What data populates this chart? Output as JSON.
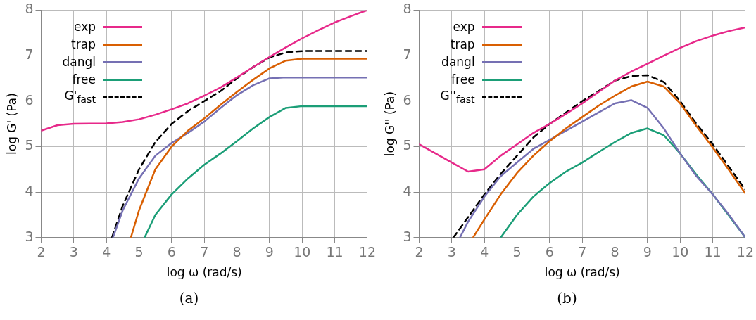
{
  "chart_data": [
    {
      "type": "line",
      "xlabel": "log ω (rad/s)",
      "ylabel": "log G' (Pa)",
      "xlim": [
        2,
        12
      ],
      "ylim": [
        3,
        8
      ],
      "xticks": [
        2,
        3,
        4,
        5,
        6,
        7,
        8,
        9,
        10,
        11,
        12
      ],
      "yticks": [
        3,
        4,
        5,
        6,
        7,
        8
      ],
      "grid": true,
      "legend": "top left",
      "marker": "none",
      "annotations": [
        "(a)"
      ],
      "series": [
        {
          "name": "exp",
          "color": "#e7298a",
          "x": [
            2,
            2.5,
            3,
            4,
            4.5,
            5,
            5.5,
            6,
            6.5,
            7,
            7.5,
            8,
            8.5,
            9,
            9.5,
            10,
            10.5,
            11,
            11.5,
            12
          ],
          "values": [
            5.35,
            5.47,
            5.5,
            5.51,
            5.54,
            5.6,
            5.7,
            5.82,
            5.95,
            6.12,
            6.3,
            6.52,
            6.75,
            6.97,
            7.18,
            7.38,
            7.56,
            7.73,
            7.87,
            8.0
          ]
        },
        {
          "name": "trap",
          "color": "#d95f02",
          "x": [
            4.75,
            5,
            5.5,
            6,
            6.5,
            7,
            7.5,
            8,
            8.5,
            9,
            9.5,
            10,
            12
          ],
          "values": [
            3,
            3.6,
            4.5,
            5.0,
            5.35,
            5.62,
            5.92,
            6.2,
            6.47,
            6.72,
            6.89,
            6.93,
            6.93
          ]
        },
        {
          "name": "dangl",
          "color": "#7570b3",
          "x": [
            4.2,
            4.5,
            5,
            5.5,
            6,
            6.5,
            7,
            7.5,
            8,
            8.5,
            9,
            9.5,
            12
          ],
          "values": [
            3,
            3.6,
            4.3,
            4.8,
            5.08,
            5.3,
            5.55,
            5.85,
            6.13,
            6.35,
            6.5,
            6.52,
            6.52
          ]
        },
        {
          "name": "free",
          "color": "#1b9e77",
          "x": [
            5.17,
            5.5,
            6,
            6.5,
            7,
            7.5,
            8,
            8.5,
            9,
            9.5,
            10,
            12
          ],
          "values": [
            3,
            3.5,
            3.95,
            4.3,
            4.6,
            4.85,
            5.12,
            5.4,
            5.65,
            5.85,
            5.89,
            5.89
          ]
        },
        {
          "name": "G'$_{fast}$",
          "color": "#000000",
          "line_style": "dashed",
          "x": [
            4.17,
            4.5,
            5,
            5.5,
            6,
            6.5,
            7,
            7.5,
            8,
            8.5,
            9,
            9.5,
            10,
            12
          ],
          "values": [
            3,
            3.7,
            4.5,
            5.1,
            5.5,
            5.78,
            6.0,
            6.22,
            6.5,
            6.75,
            6.96,
            7.07,
            7.1,
            7.1
          ]
        }
      ]
    },
    {
      "type": "line",
      "xlabel": "log ω (rad/s)",
      "ylabel": "log G'' (Pa)",
      "xlim": [
        2,
        12
      ],
      "ylim": [
        3,
        8
      ],
      "xticks": [
        2,
        3,
        4,
        5,
        6,
        7,
        8,
        9,
        10,
        11,
        12
      ],
      "yticks": [
        3,
        4,
        5,
        6,
        7,
        8
      ],
      "grid": true,
      "legend": "top left",
      "marker": "none",
      "annotations": [
        "(b)"
      ],
      "series": [
        {
          "name": "exp",
          "color": "#e7298a",
          "x": [
            2,
            2.5,
            3,
            3.5,
            4,
            4.5,
            5,
            5.5,
            6,
            6.5,
            7,
            7.5,
            8,
            8.5,
            9,
            9.5,
            10,
            10.5,
            11,
            11.5,
            12
          ],
          "values": [
            5.05,
            4.85,
            4.65,
            4.45,
            4.5,
            4.8,
            5.05,
            5.3,
            5.5,
            5.72,
            5.95,
            6.2,
            6.45,
            6.65,
            6.82,
            7.0,
            7.17,
            7.32,
            7.44,
            7.54,
            7.62
          ]
        },
        {
          "name": "trap",
          "color": "#d95f02",
          "x": [
            3.65,
            4,
            4.5,
            5,
            5.5,
            6,
            6.5,
            7,
            7.5,
            8,
            8.5,
            9,
            9.5,
            10,
            10.5,
            11,
            11.5,
            12
          ],
          "values": [
            3,
            3.4,
            3.95,
            4.42,
            4.8,
            5.12,
            5.4,
            5.65,
            5.9,
            6.12,
            6.32,
            6.43,
            6.32,
            5.95,
            5.45,
            4.98,
            4.48,
            3.97
          ]
        },
        {
          "name": "dangl",
          "color": "#7570b3",
          "x": [
            3.25,
            3.5,
            4,
            4.5,
            5,
            5.5,
            6,
            6.5,
            7,
            7.5,
            8,
            8.5,
            9,
            9.5,
            10,
            10.5,
            11,
            11.5,
            12
          ],
          "values": [
            3,
            3.35,
            3.9,
            4.35,
            4.65,
            4.95,
            5.15,
            5.35,
            5.55,
            5.75,
            5.95,
            6.02,
            5.85,
            5.4,
            4.85,
            4.35,
            3.95,
            3.5,
            3.0
          ]
        },
        {
          "name": "free",
          "color": "#1b9e77",
          "x": [
            4.5,
            5,
            5.5,
            6,
            6.5,
            7,
            7.5,
            8,
            8.5,
            9,
            9.5,
            10,
            10.5,
            11,
            11.5,
            12
          ],
          "values": [
            3,
            3.5,
            3.9,
            4.2,
            4.45,
            4.65,
            4.88,
            5.1,
            5.3,
            5.4,
            5.25,
            4.85,
            4.38,
            3.95,
            3.48,
            3.0
          ]
        },
        {
          "name": "G''$_{fast}$",
          "color": "#000000",
          "line_style": "dashed",
          "x": [
            3.05,
            3.5,
            4,
            4.5,
            5,
            5.5,
            6,
            6.5,
            7,
            7.5,
            8,
            8.5,
            9,
            9.5,
            10,
            10.5,
            11,
            11.5,
            12
          ],
          "values": [
            3,
            3.45,
            3.95,
            4.4,
            4.8,
            5.2,
            5.5,
            5.75,
            6.0,
            6.22,
            6.45,
            6.55,
            6.57,
            6.42,
            6.0,
            5.5,
            5.05,
            4.55,
            4.05
          ]
        }
      ]
    }
  ]
}
